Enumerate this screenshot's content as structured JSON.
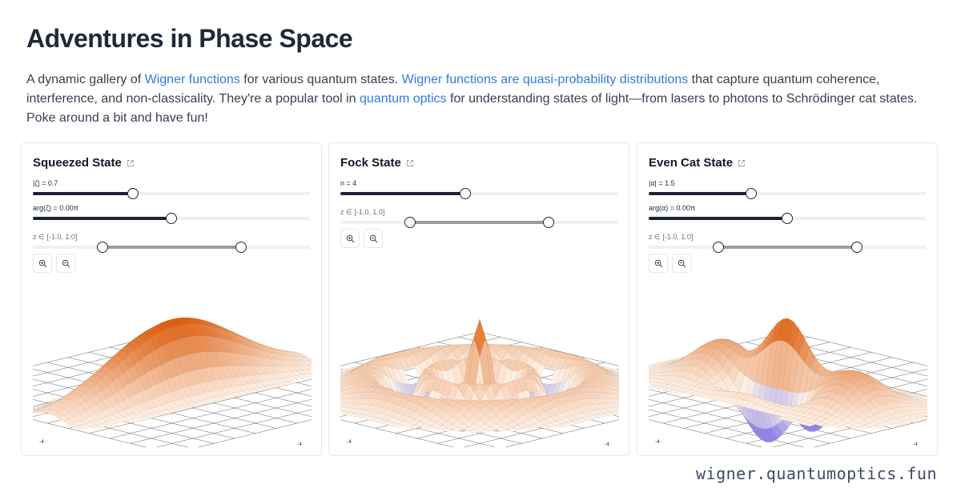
{
  "page": {
    "title": "Adventures in Phase Space",
    "intro": {
      "t1": "A dynamic gallery of ",
      "link1": "Wigner functions",
      "t2": " for various quantum states. ",
      "link2": "Wigner functions are quasi-probability distributions",
      "t3": " that capture quantum coherence, interference, and non-classicality. They're a popular tool in ",
      "link3": "quantum optics",
      "t4": " for understanding states of light—from lasers to photons to Schrödinger cat states. Poke around a bit and have fun!"
    },
    "footer": "wigner.quantumoptics.fun"
  },
  "cards": [
    {
      "title": "Squeezed State",
      "param1_label": "|ζ| = 0.7",
      "param1_fraction": 0.36,
      "param2_label": "arg(ζ) = 0.00π",
      "param2_fraction": 0.5,
      "range_label": "z ∈ [-1.0, 1.0]",
      "range_low_fraction": 0.25,
      "range_high_fraction": 0.75,
      "axis_tick": "-4",
      "state": "squeezed"
    },
    {
      "title": "Fock State",
      "param1_label": "n = 4",
      "param1_fraction": 0.45,
      "range_label": "z ∈ [-1.0, 1.0]",
      "range_low_fraction": 0.25,
      "range_high_fraction": 0.75,
      "axis_tick": "-4",
      "state": "fock"
    },
    {
      "title": "Even Cat State",
      "param1_label": "|α| = 1.5",
      "param1_fraction": 0.37,
      "param2_label": "arg(α) = 0.00π",
      "param2_fraction": 0.5,
      "range_label": "z ∈ [-1.0, 1.0]",
      "range_low_fraction": 0.25,
      "range_high_fraction": 0.75,
      "axis_tick": "-4",
      "state": "cat"
    }
  ],
  "icons": {
    "zoom_in": "zoom-in-icon",
    "zoom_out": "zoom-out-icon",
    "external": "external-link-icon"
  },
  "colors": {
    "link": "#2f7be5",
    "slider_fill": "#1a2233",
    "range_fill": "#9a9ca3",
    "surface_peak": "#e8620c",
    "surface_low": "#fff4ea",
    "surface_negative": "#8f86e8"
  }
}
